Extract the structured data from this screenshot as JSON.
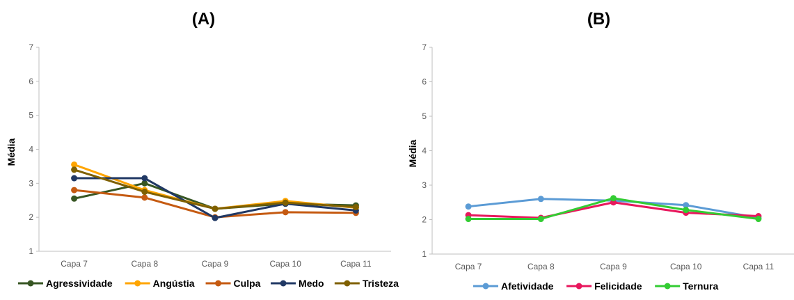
{
  "chart_data": [
    {
      "type": "line",
      "title": "(A)",
      "ylabel": "Média",
      "xlabel": "",
      "ylim": [
        1,
        7
      ],
      "yticks": [
        "1",
        "2",
        "3",
        "4",
        "5",
        "6",
        "7"
      ],
      "categories": [
        "Capa 7",
        "Capa 8",
        "Capa 9",
        "Capa 10",
        "Capa 11"
      ],
      "grid": false,
      "legend": "bottom",
      "series": [
        {
          "name": "Agressividade",
          "color": "#375623",
          "values": [
            2.55,
            3.0,
            2.25,
            2.4,
            2.35
          ]
        },
        {
          "name": "Angústia",
          "color": "#FFA500",
          "values": [
            3.55,
            2.8,
            2.25,
            2.48,
            2.28
          ]
        },
        {
          "name": "Culpa",
          "color": "#C55A11",
          "values": [
            2.8,
            2.58,
            2.0,
            2.15,
            2.13
          ]
        },
        {
          "name": "Medo",
          "color": "#203864",
          "values": [
            3.15,
            3.15,
            1.98,
            2.4,
            2.2
          ]
        },
        {
          "name": "Tristeza",
          "color": "#7F6000",
          "values": [
            3.4,
            2.75,
            2.25,
            2.43,
            2.3
          ]
        }
      ]
    },
    {
      "type": "line",
      "title": "(B)",
      "ylabel": "Média",
      "xlabel": "",
      "ylim": [
        1,
        7
      ],
      "yticks": [
        "1",
        "2",
        "3",
        "4",
        "5",
        "6",
        "7"
      ],
      "categories": [
        "Capa 7",
        "Capa 8",
        "Capa 9",
        "Capa 10",
        "Capa 11"
      ],
      "grid": false,
      "legend": "bottom",
      "series": [
        {
          "name": "Afetividade",
          "color": "#5B9BD5",
          "values": [
            2.38,
            2.6,
            2.55,
            2.42,
            2.05
          ]
        },
        {
          "name": "Felicidade",
          "color": "#E8175D",
          "values": [
            2.13,
            2.05,
            2.5,
            2.2,
            2.1
          ]
        },
        {
          "name": "Ternura",
          "color": "#33CC33",
          "values": [
            2.02,
            2.02,
            2.62,
            2.28,
            2.02
          ]
        }
      ]
    }
  ]
}
